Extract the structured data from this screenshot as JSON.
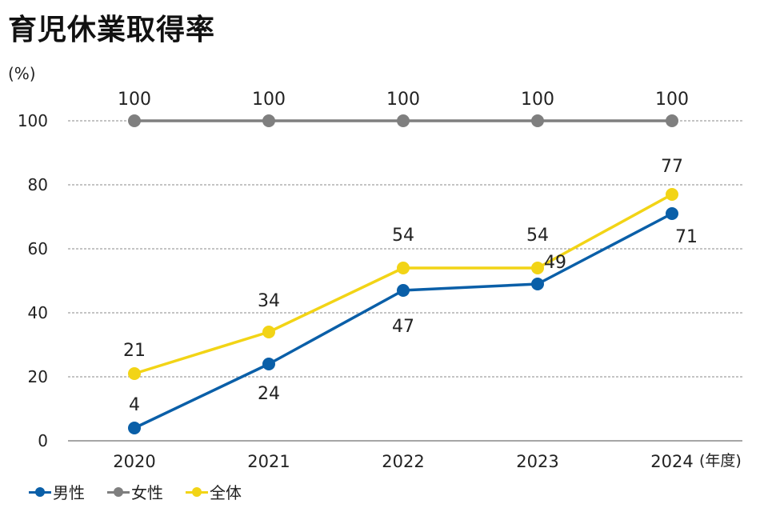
{
  "chart_data": {
    "type": "line",
    "title": "育児休業取得率",
    "ylabel": "(%)",
    "xlabel": "(年度)",
    "categories": [
      "2020",
      "2021",
      "2022",
      "2023",
      "2024"
    ],
    "ylim": [
      0,
      100
    ],
    "yticks": [
      "0",
      "20",
      "40",
      "60",
      "80",
      "100"
    ],
    "grid": true,
    "legend_position": "bottom-left",
    "series": [
      {
        "name": "男性",
        "color": "#0a5fa8",
        "values": [
          4,
          24,
          47,
          49,
          71
        ],
        "labels": [
          "4",
          "24",
          "47",
          "49",
          "71"
        ]
      },
      {
        "name": "女性",
        "color": "#7f7f7f",
        "values": [
          100,
          100,
          100,
          100,
          100
        ],
        "labels": [
          "100",
          "100",
          "100",
          "100",
          "100"
        ]
      },
      {
        "name": "全体",
        "color": "#f2d416",
        "values": [
          21,
          34,
          54,
          54,
          77
        ],
        "labels": [
          "21",
          "34",
          "54",
          "54",
          "77"
        ]
      }
    ]
  }
}
